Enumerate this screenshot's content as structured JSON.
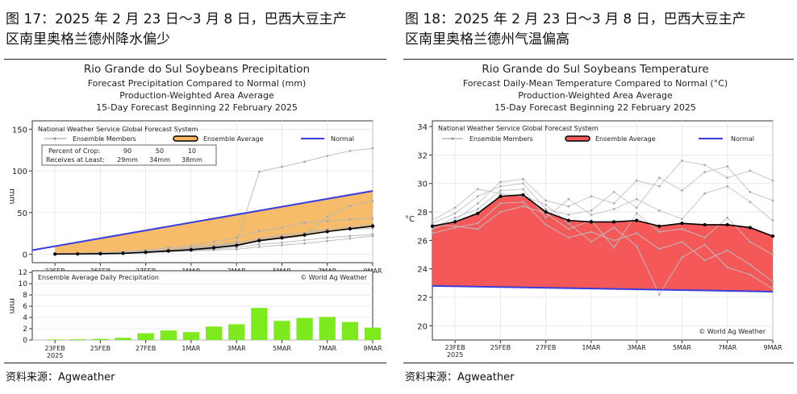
{
  "left_figure": {
    "caption_line1": "图 17：2025 年 2 月 23 日～3 月 8 日，巴西大豆主产",
    "caption_line2": "区南里奥格兰德州降水偏少",
    "source": "资料来源：Agweather"
  },
  "right_figure": {
    "caption_line1": "图 18：2025 年 2 月 23 日～3 月 8 日，巴西大豆主产",
    "caption_line2": "区南里奥格兰德州气温偏高",
    "source": "资料来源：Agweather"
  },
  "chart_data": [
    {
      "type": "line",
      "title": "Rio Grande do Sul Soybeans Precipitation",
      "subtitle_lines": [
        "Forecast Precipitation Compared to Normal (mm)",
        "Production-Weighted Area Average",
        "15-Day Forecast Beginning 22 February 2025"
      ],
      "header": "National Weather Service Global Forecast System",
      "legend": {
        "members": "Ensemble Members",
        "average": "Ensemble Average",
        "normal": "Normal"
      },
      "percent_box": {
        "row1_label": "Percent of Crop:",
        "row1_values": [
          "90",
          "50",
          "10"
        ],
        "row2_label": "Receives at Least:",
        "row2_values": [
          "29mm",
          "34mm",
          "38mm"
        ]
      },
      "ylabel": "mm",
      "yticks": [
        0,
        50,
        100,
        150
      ],
      "ylim": [
        -10,
        160
      ],
      "xlim": [
        0,
        15
      ],
      "x_ticks": [
        {
          "x": 1,
          "label": "23FEB",
          "sub": "2025"
        },
        {
          "x": 3,
          "label": "25FEB",
          "sub": ""
        },
        {
          "x": 5,
          "label": "27FEB",
          "sub": ""
        },
        {
          "x": 7,
          "label": "1MAR",
          "sub": ""
        },
        {
          "x": 9,
          "label": "3MAR",
          "sub": ""
        },
        {
          "x": 11,
          "label": "5MAR",
          "sub": ""
        },
        {
          "x": 13,
          "label": "7MAR",
          "sub": ""
        },
        {
          "x": 15,
          "label": "9MAR",
          "sub": ""
        }
      ],
      "normal": {
        "x": [
          0,
          15
        ],
        "y": [
          5,
          76
        ]
      },
      "ensemble_average": {
        "x": [
          1,
          2,
          3,
          4,
          5,
          6,
          7,
          8,
          9,
          10,
          11,
          12,
          13,
          14,
          15
        ],
        "y": [
          0.3,
          0.5,
          0.8,
          1.2,
          2.4,
          4.1,
          5.5,
          7.9,
          10.7,
          16.4,
          19.8,
          23.3,
          27.3,
          30.6,
          33.8
        ]
      },
      "members": [
        [
          0,
          0,
          1,
          2,
          3,
          5,
          7,
          10,
          14,
          19,
          23,
          26,
          30,
          33,
          36
        ],
        [
          0,
          1,
          1,
          2,
          2,
          3,
          5,
          6,
          8,
          12,
          14,
          17,
          20,
          22,
          24
        ],
        [
          0,
          1,
          2,
          3,
          5,
          8,
          10,
          15,
          20,
          28,
          32,
          38,
          40,
          42,
          43
        ],
        [
          0,
          0,
          0,
          1,
          2,
          3,
          4,
          5,
          6,
          9,
          11,
          13,
          16,
          19,
          22
        ],
        [
          1,
          1,
          2,
          3,
          4,
          6,
          8,
          11,
          15,
          99,
          105,
          111,
          118,
          124,
          127
        ],
        [
          0,
          0,
          1,
          1,
          2,
          3,
          5,
          7,
          10,
          16,
          19,
          22,
          45,
          58,
          64
        ],
        [
          0,
          1,
          1,
          2,
          3,
          4,
          6,
          9,
          12,
          18,
          22,
          26,
          28,
          30,
          31
        ]
      ]
    },
    {
      "type": "bar",
      "title": "Ensemble Average Daily Precipitation",
      "note": "© World Ag Weather",
      "ylabel": "mm",
      "yticks": [
        0,
        2,
        4,
        6,
        8,
        10,
        12
      ],
      "ylim": [
        0,
        12.3
      ],
      "x": [
        1,
        2,
        3,
        4,
        5,
        6,
        7,
        8,
        9,
        10,
        11,
        12,
        13,
        14,
        15
      ],
      "values": [
        0.1,
        0.15,
        0.2,
        0.4,
        1.2,
        1.7,
        1.4,
        2.4,
        2.8,
        5.7,
        3.4,
        3.9,
        4.1,
        3.2,
        2.2
      ],
      "color": "#7dea1e"
    },
    {
      "type": "line",
      "title": "Rio Grande do Sul Soybeans Temperature",
      "subtitle_lines": [
        "Forecast Daily-Mean Temperature Compared to Normal (°C)",
        "Production-Weighted Area Average",
        "15-Day Forecast Beginning 22 February 2025"
      ],
      "header": "National Weather Service Global Forecast System",
      "legend": {
        "members": "Ensemble Members",
        "average": "Ensemble Average",
        "normal": "Normal"
      },
      "note": "© World Ag Weather",
      "ylabel": "°C",
      "yticks": [
        20,
        22,
        24,
        26,
        28,
        30,
        32,
        34
      ],
      "ylim": [
        19,
        34.4
      ],
      "xlim": [
        0,
        15
      ],
      "x_ticks": [
        {
          "x": 1,
          "label": "23FEB",
          "sub": "2025"
        },
        {
          "x": 3,
          "label": "25FEB",
          "sub": ""
        },
        {
          "x": 5,
          "label": "27FEB",
          "sub": ""
        },
        {
          "x": 7,
          "label": "1MAR",
          "sub": ""
        },
        {
          "x": 9,
          "label": "3MAR",
          "sub": ""
        },
        {
          "x": 11,
          "label": "5MAR",
          "sub": ""
        },
        {
          "x": 13,
          "label": "7MAR",
          "sub": ""
        },
        {
          "x": 15,
          "label": "9MAR",
          "sub": ""
        }
      ],
      "normal": {
        "x": [
          0,
          15
        ],
        "y": [
          22.8,
          22.4
        ]
      },
      "ensemble_average": {
        "x": [
          0,
          1,
          2,
          3,
          4,
          5,
          6,
          7,
          8,
          9,
          10,
          11,
          12,
          13,
          14,
          15
        ],
        "y": [
          27.0,
          27.3,
          27.9,
          29.1,
          29.2,
          28.0,
          27.4,
          27.3,
          27.3,
          27.4,
          27.0,
          27.2,
          27.1,
          27.1,
          26.9,
          26.3
        ]
      },
      "members": [
        [
          26.8,
          27.4,
          28.6,
          30.1,
          30.3,
          28.8,
          28.4,
          29.1,
          28.6,
          30.2,
          29.8,
          31.6,
          31.3,
          30.4,
          30.9,
          30.2
        ],
        [
          27.2,
          27.9,
          29.1,
          29.8,
          30.0,
          28.2,
          27.8,
          28.1,
          29.4,
          28.3,
          30.4,
          29.5,
          30.8,
          31.2,
          29.4,
          28.8
        ],
        [
          26.5,
          26.9,
          27.2,
          28.6,
          28.7,
          27.1,
          26.2,
          26.6,
          26.0,
          26.5,
          25.4,
          25.9,
          24.6,
          25.3,
          24.3,
          23.1
        ],
        [
          27.4,
          28.3,
          29.6,
          29.3,
          29.1,
          28.5,
          27.2,
          25.9,
          26.9,
          25.6,
          22.2,
          24.8,
          25.7,
          24.1,
          23.6,
          22.6
        ],
        [
          26.9,
          27.6,
          28.2,
          29.5,
          29.6,
          27.6,
          28.9,
          27.8,
          28.2,
          28.9,
          28.1,
          27.5,
          29.3,
          29.8,
          28.7,
          27.4
        ],
        [
          27.1,
          27.0,
          26.8,
          28.0,
          28.4,
          27.9,
          26.8,
          27.4,
          25.5,
          27.9,
          26.6,
          26.8,
          26.2,
          27.6,
          25.9,
          25.0
        ]
      ]
    }
  ]
}
